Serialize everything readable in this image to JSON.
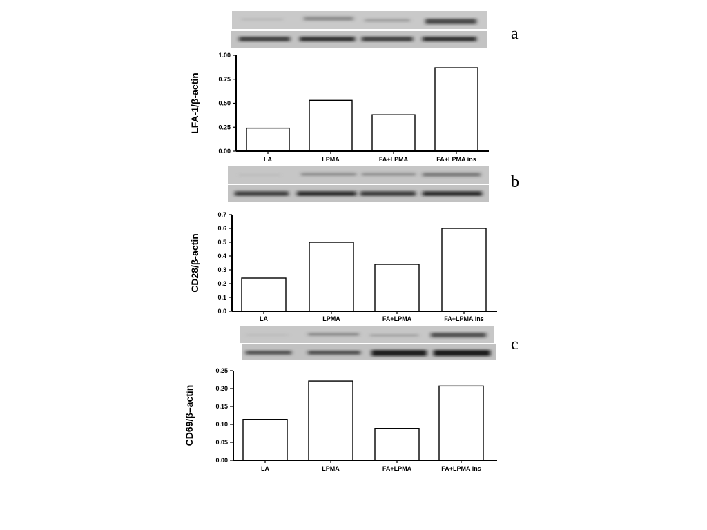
{
  "panel_labels": [
    "a",
    "b",
    "c"
  ],
  "chart_data": [
    {
      "type": "bar",
      "ylabel": "LFA-1/β-actin",
      "categories": [
        "LA",
        "LPMA",
        "FA+LPMA",
        "FA+LPMA ins"
      ],
      "values": [
        0.24,
        0.53,
        0.38,
        0.87
      ],
      "ylim": [
        0,
        1.0
      ],
      "yticks": [
        "0.00",
        "0.25",
        "0.50",
        "0.75",
        "1.00"
      ],
      "grid": false
    },
    {
      "type": "bar",
      "ylabel": "CD28/β-actin",
      "categories": [
        "LA",
        "LPMA",
        "FA+LPMA",
        "FA+LPMA ins"
      ],
      "values": [
        0.24,
        0.5,
        0.34,
        0.6
      ],
      "ylim": [
        0,
        0.7
      ],
      "yticks": [
        "0.0",
        "0.1",
        "0.2",
        "0.3",
        "0.4",
        "0.5",
        "0.6",
        "0.7"
      ],
      "grid": false
    },
    {
      "type": "bar",
      "ylabel": "CD69/β–actin",
      "categories": [
        "LA",
        "LPMA",
        "FA+LPMA",
        "FA+LPMA ins"
      ],
      "values": [
        0.114,
        0.221,
        0.089,
        0.207
      ],
      "ylim": [
        0,
        0.25
      ],
      "yticks": [
        "0.00",
        "0.05",
        "0.10",
        "0.15",
        "0.20",
        "0.25"
      ],
      "grid": false
    }
  ]
}
